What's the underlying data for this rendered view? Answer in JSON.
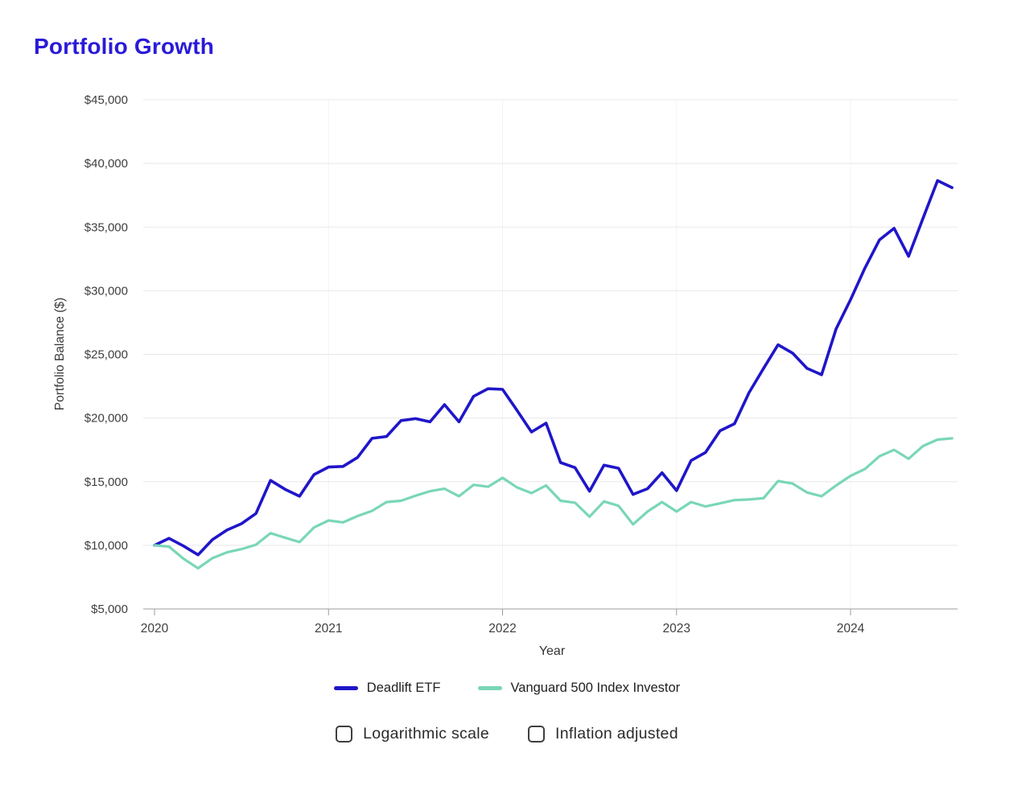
{
  "page": {
    "title": "Portfolio Growth",
    "title_color": "#2a1ad9",
    "background": "#ffffff"
  },
  "chart_data": {
    "type": "line",
    "title": "Portfolio Growth",
    "xlabel": "Year",
    "ylabel": "Portfolio Balance ($)",
    "x_start": "2020-01",
    "x_interval": "1 month",
    "n_points": 56,
    "x_tick_labels": [
      "2020",
      "2021",
      "2022",
      "2023",
      "2024"
    ],
    "x_tick_month_positions": [
      0,
      12,
      24,
      36,
      48
    ],
    "y_ticks": [
      5000,
      10000,
      15000,
      20000,
      25000,
      30000,
      35000,
      40000,
      45000
    ],
    "y_tick_format": "$#,##0",
    "ylim": [
      5000,
      45000
    ],
    "grid": "horizontal-light",
    "legend_position": "bottom-center",
    "series": [
      {
        "name": "Deadlift ETF",
        "color": "#1f16c9",
        "line_width": 3.6,
        "values": [
          10000,
          10550,
          9950,
          9250,
          10450,
          11200,
          11700,
          12500,
          15100,
          14400,
          13850,
          15550,
          16150,
          16200,
          16900,
          18400,
          18550,
          19800,
          19950,
          19700,
          21050,
          19700,
          21700,
          22300,
          22250,
          20600,
          18900,
          19600,
          16500,
          16100,
          14250,
          16300,
          16050,
          14000,
          14450,
          15700,
          14300,
          16650,
          17300,
          19000,
          19550,
          22000,
          23900,
          25750,
          25100,
          23900,
          23400,
          27000,
          29300,
          31800,
          34000,
          34900,
          32700,
          35700,
          38650,
          38100
        ]
      },
      {
        "name": "Vanguard 500 Index Investor",
        "color": "#79d7b5",
        "line_width": 3.2,
        "values": [
          10000,
          9900,
          8950,
          8200,
          9000,
          9450,
          9700,
          10050,
          10950,
          10600,
          10250,
          11400,
          11950,
          11800,
          12300,
          12700,
          13400,
          13500,
          13900,
          14250,
          14450,
          13850,
          14750,
          14600,
          15300,
          14550,
          14100,
          14700,
          13500,
          13350,
          12250,
          13450,
          13100,
          11650,
          12650,
          13400,
          12650,
          13400,
          13050,
          13300,
          13550,
          13600,
          13700,
          15050,
          14850,
          14150,
          13850,
          14700,
          15450,
          16000,
          17000,
          17500,
          16800,
          17800,
          18300,
          18400
        ]
      }
    ]
  },
  "controls": {
    "checkboxes": [
      {
        "label": "Logarithmic scale",
        "checked": false
      },
      {
        "label": "Inflation adjusted",
        "checked": false
      }
    ]
  }
}
